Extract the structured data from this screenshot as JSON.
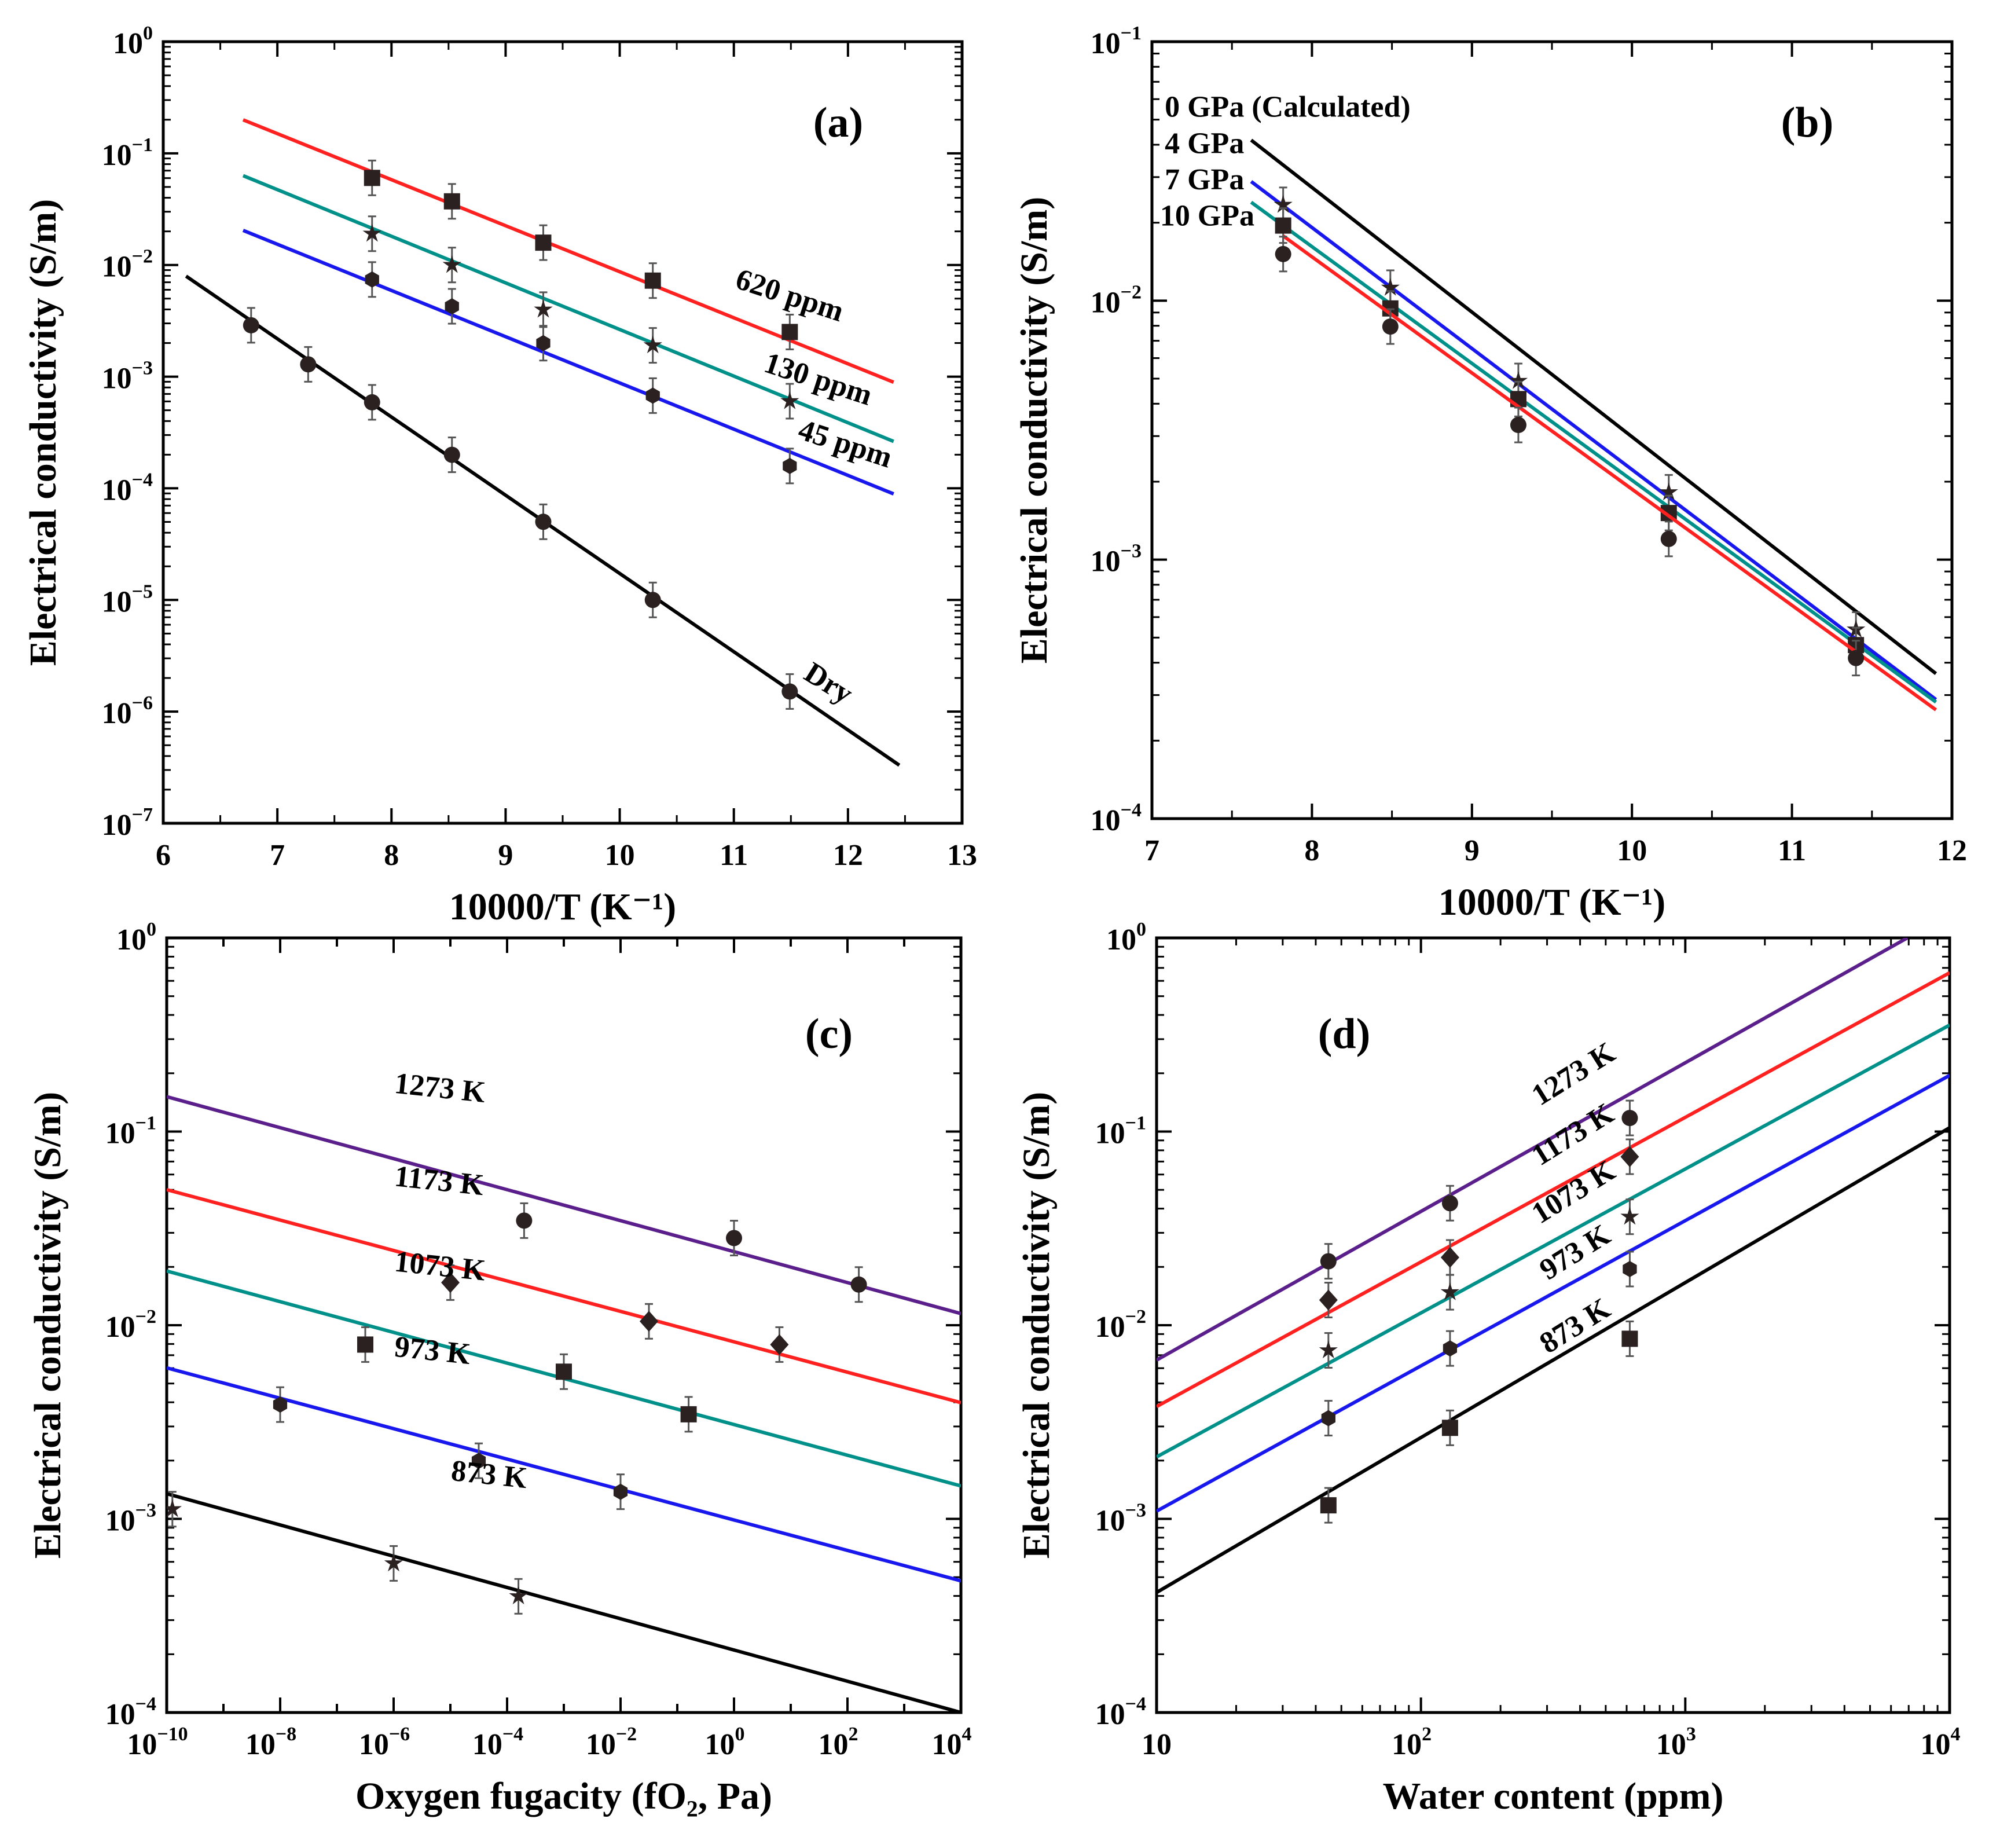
{
  "chart_data": [
    {
      "panel": "(a)",
      "type": "scatter",
      "xlabel": "10000/T (K⁻¹)",
      "ylabel": "Electrical conductivity (S/m)",
      "xlim": [
        6,
        13
      ],
      "ylim_log10": [
        -7,
        0
      ],
      "yscale": "log",
      "xticks": [
        6,
        7,
        8,
        9,
        10,
        11,
        12,
        13
      ],
      "yticks_exp": [
        -7,
        -6,
        -5,
        -4,
        -3,
        -2,
        -1,
        0
      ],
      "series": [
        {
          "name": "620 ppm",
          "color": "#ff2020",
          "marker": "square",
          "fit": {
            "x": [
              6.7,
              12.4
            ],
            "log10y": [
              -0.7,
              -3.05
            ]
          },
          "label_pos": [
            11.0,
            -2.2
          ],
          "label_rot": 18,
          "points": [
            [
              7.83,
              -1.22
            ],
            [
              8.53,
              -1.43
            ],
            [
              9.33,
              -1.8
            ],
            [
              10.29,
              -2.14
            ],
            [
              11.49,
              -2.6
            ]
          ]
        },
        {
          "name": "130 ppm",
          "color": "#00908a",
          "marker": "star",
          "fit": {
            "x": [
              6.7,
              12.4
            ],
            "log10y": [
              -1.2,
              -3.58
            ]
          },
          "label_pos": [
            11.25,
            -2.95
          ],
          "label_rot": 18,
          "points": [
            [
              7.83,
              -1.72
            ],
            [
              8.53,
              -2.0
            ],
            [
              9.33,
              -2.4
            ],
            [
              10.29,
              -2.72
            ],
            [
              11.49,
              -3.22
            ]
          ]
        },
        {
          "name": "45 ppm",
          "color": "#1818ee",
          "marker": "hexagon",
          "fit": {
            "x": [
              6.7,
              12.4
            ],
            "log10y": [
              -1.69,
              -4.05
            ]
          },
          "label_pos": [
            11.55,
            -3.55
          ],
          "label_rot": 18,
          "points": [
            [
              7.83,
              -2.13
            ],
            [
              8.53,
              -2.37
            ],
            [
              9.33,
              -2.7
            ],
            [
              10.29,
              -3.17
            ],
            [
              11.49,
              -3.8
            ]
          ]
        },
        {
          "name": "Dry",
          "color": "#000000",
          "marker": "circle",
          "fit": {
            "x": [
              6.2,
              12.45
            ],
            "log10y": [
              -2.1,
              -6.48
            ]
          },
          "label_pos": [
            11.6,
            -5.7
          ],
          "label_rot": 32,
          "points": [
            [
              6.77,
              -2.54
            ],
            [
              7.27,
              -2.89
            ],
            [
              7.83,
              -3.23
            ],
            [
              8.53,
              -3.7
            ],
            [
              9.33,
              -4.3
            ],
            [
              10.29,
              -5.0
            ],
            [
              11.49,
              -5.82
            ]
          ]
        }
      ],
      "title": "(a)"
    },
    {
      "panel": "(b)",
      "type": "scatter",
      "xlabel": "10000/T (K⁻¹)",
      "ylabel": "Electrical conductivity (S/m)",
      "xlim": [
        7,
        12
      ],
      "ylim_log10": [
        -4,
        -1
      ],
      "yscale": "log",
      "xticks": [
        7,
        8,
        9,
        10,
        11,
        12
      ],
      "yticks_exp": [
        -4,
        -3,
        -2,
        -1
      ],
      "series": [
        {
          "name": "0 GPa (Calculated)",
          "color": "#000000",
          "marker": "none",
          "fit": {
            "x": [
              7.62,
              11.9
            ],
            "log10y": [
              -1.38,
              -3.44
            ]
          },
          "label_pos": [
            7.08,
            -1.29
          ],
          "points": []
        },
        {
          "name": "4 GPa",
          "color": "#1818ee",
          "marker": "star",
          "fit": {
            "x": [
              7.62,
              11.9
            ],
            "log10y": [
              -1.54,
              -3.54
            ]
          },
          "label_pos": [
            7.08,
            -1.43
          ],
          "points": [
            [
              7.82,
              -1.63
            ],
            [
              8.49,
              -1.95
            ],
            [
              9.29,
              -2.31
            ],
            [
              10.23,
              -2.74
            ],
            [
              11.4,
              -3.27
            ]
          ]
        },
        {
          "name": "7 GPa",
          "color": "#00908a",
          "marker": "square",
          "fit": {
            "x": [
              7.62,
              11.9
            ],
            "log10y": [
              -1.62,
              -3.55
            ]
          },
          "label_pos": [
            7.08,
            -1.57
          ],
          "points": [
            [
              7.82,
              -1.71
            ],
            [
              8.49,
              -2.03
            ],
            [
              9.29,
              -2.38
            ],
            [
              10.23,
              -2.82
            ],
            [
              11.4,
              -3.33
            ]
          ]
        },
        {
          "name": "10 GPa",
          "color": "#ff2020",
          "marker": "circle",
          "fit": {
            "x": [
              7.82,
              11.9
            ],
            "log10y": [
              -1.75,
              -3.58
            ]
          },
          "label_pos": [
            7.05,
            -1.71
          ],
          "points": [
            [
              7.82,
              -1.82
            ],
            [
              8.49,
              -2.1
            ],
            [
              9.29,
              -2.48
            ],
            [
              10.23,
              -2.92
            ],
            [
              11.4,
              -3.38
            ]
          ]
        }
      ],
      "title": "(b)"
    },
    {
      "panel": "(c)",
      "type": "scatter",
      "xlabel": "Oxygen fugacity (fO₂, Pa)",
      "ylabel": "Electrical conductivity (S/m)",
      "xlim_log10": [
        -10,
        4
      ],
      "ylim_log10": [
        -4,
        0
      ],
      "xscale": "log",
      "yscale": "log",
      "xticks_exp": [
        -10,
        -8,
        -6,
        -4,
        -2,
        0,
        2,
        4
      ],
      "yticks_exp": [
        -4,
        -3,
        -2,
        -1,
        0
      ],
      "series": [
        {
          "name": "1273 K",
          "color": "#5b1f8c",
          "marker": "circle",
          "fit": {
            "log10x": [
              -10,
              4
            ],
            "log10y": [
              -0.82,
              -1.94
            ]
          },
          "label_pos": [
            -6.0,
            -0.8
          ],
          "label_rot": 6,
          "points": [
            [
              -3.7,
              -1.46
            ],
            [
              0.0,
              -1.55
            ],
            [
              2.2,
              -1.79
            ]
          ]
        },
        {
          "name": "1173 K",
          "color": "#ff2020",
          "marker": "diamond",
          "fit": {
            "log10x": [
              -10,
              4
            ],
            "log10y": [
              -1.3,
              -2.4
            ]
          },
          "label_pos": [
            -6.0,
            -1.28
          ],
          "label_rot": 6,
          "points": [
            [
              -5.0,
              -1.78
            ],
            [
              -1.5,
              -1.98
            ],
            [
              0.8,
              -2.1
            ]
          ]
        },
        {
          "name": "1073 K",
          "color": "#00908a",
          "marker": "square",
          "fit": {
            "log10x": [
              -10,
              4
            ],
            "log10y": [
              -1.72,
              -2.83
            ]
          },
          "label_pos": [
            -6.0,
            -1.72
          ],
          "label_rot": 6,
          "points": [
            [
              -6.5,
              -2.1
            ],
            [
              -3.0,
              -2.24
            ],
            [
              -0.8,
              -2.46
            ]
          ]
        },
        {
          "name": "973 K",
          "color": "#1818ee",
          "marker": "hexagon",
          "fit": {
            "log10x": [
              -10,
              4
            ],
            "log10y": [
              -2.22,
              -3.32
            ]
          },
          "label_pos": [
            -6.0,
            -2.16
          ],
          "label_rot": 6,
          "points": [
            [
              -8.0,
              -2.41
            ],
            [
              -4.5,
              -2.7
            ],
            [
              -2.0,
              -2.86
            ]
          ]
        },
        {
          "name": "873 K",
          "color": "#000000",
          "marker": "star",
          "fit": {
            "log10x": [
              -10,
              4
            ],
            "log10y": [
              -2.87,
              -4.0
            ]
          },
          "label_pos": [
            -5.0,
            -2.8
          ],
          "label_rot": 6,
          "points": [
            [
              -9.9,
              -2.95
            ],
            [
              -6.0,
              -3.23
            ],
            [
              -3.8,
              -3.4
            ]
          ]
        }
      ],
      "title": "(c)"
    },
    {
      "panel": "(d)",
      "type": "scatter",
      "xlabel": "Water content (ppm)",
      "ylabel": "Electrical conductivity (S/m)",
      "xlim_log10": [
        1,
        4
      ],
      "ylim_log10": [
        -4,
        0
      ],
      "xscale": "log",
      "yscale": "log",
      "xticks": [
        "10",
        "10²",
        "10³",
        "10⁴"
      ],
      "xticks_exp": [
        1,
        2,
        3,
        4
      ],
      "yticks_exp": [
        -4,
        -3,
        -2,
        -1,
        0
      ],
      "series": [
        {
          "name": "1273 K",
          "color": "#5b1f8c",
          "marker": "circle",
          "fit": {
            "log10x": [
              1,
              3.84
            ],
            "log10y": [
              -2.18,
              0
            ]
          },
          "label_pos": [
            2.45,
            -0.87
          ],
          "label_rot": -32,
          "points": [
            [
              1.65,
              -1.67
            ],
            [
              2.11,
              -1.37
            ],
            [
              2.79,
              -0.93
            ]
          ]
        },
        {
          "name": "1173 K",
          "color": "#ff2020",
          "marker": "diamond",
          "fit": {
            "log10x": [
              1,
              4
            ],
            "log10y": [
              -2.42,
              -0.18
            ]
          },
          "label_pos": [
            2.45,
            -1.18
          ],
          "label_rot": -32,
          "points": [
            [
              1.65,
              -1.87
            ],
            [
              2.11,
              -1.65
            ],
            [
              2.79,
              -1.13
            ]
          ]
        },
        {
          "name": "1073 K",
          "color": "#00908a",
          "marker": "star",
          "fit": {
            "log10x": [
              1,
              4
            ],
            "log10y": [
              -2.68,
              -0.45
            ]
          },
          "label_pos": [
            2.45,
            -1.48
          ],
          "label_rot": -32,
          "points": [
            [
              1.65,
              -2.13
            ],
            [
              2.11,
              -1.83
            ],
            [
              2.79,
              -1.44
            ]
          ]
        },
        {
          "name": "973 K",
          "color": "#1818ee",
          "marker": "hexagon",
          "fit": {
            "log10x": [
              1,
              4
            ],
            "log10y": [
              -2.96,
              -0.71
            ]
          },
          "label_pos": [
            2.48,
            -1.77
          ],
          "label_rot": -32,
          "points": [
            [
              1.65,
              -2.48
            ],
            [
              2.11,
              -2.12
            ],
            [
              2.79,
              -1.71
            ]
          ]
        },
        {
          "name": "873 K",
          "color": "#000000",
          "marker": "square",
          "fit": {
            "log10x": [
              1,
              4
            ],
            "log10y": [
              -3.38,
              -0.98
            ]
          },
          "label_pos": [
            2.48,
            -2.15
          ],
          "label_rot": -32,
          "points": [
            [
              1.65,
              -2.93
            ],
            [
              2.11,
              -2.53
            ],
            [
              2.79,
              -2.07
            ]
          ]
        }
      ],
      "title": "(d)"
    }
  ]
}
